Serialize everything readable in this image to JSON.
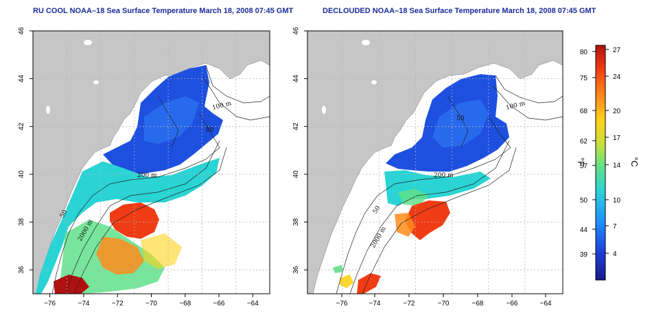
{
  "titles": {
    "left": "RU COOL NOAA–18 Sea Surface Temperature March 18, 2008 07:45 GMT",
    "right": "DECLOUDED NOAA–18 Sea Surface Temperature March 18, 2008 07:45 GMT"
  },
  "axes": {
    "x_ticks": [
      "−76",
      "−74",
      "−72",
      "−70",
      "−68",
      "−66",
      "−64"
    ],
    "y_ticks": [
      "36",
      "38",
      "40",
      "42",
      "44",
      "46"
    ],
    "lon_range": [
      -77,
      -63
    ],
    "lat_range": [
      35,
      46
    ]
  },
  "isobath_labels_left": [
    "100 m",
    "80",
    "200 m",
    "2000 m",
    "50"
  ],
  "isobath_labels_right": [
    "100 m",
    "200 m",
    "2000 m",
    "50",
    "50"
  ],
  "colorbar": {
    "fahrenheit_ticks": [
      "80",
      "75",
      "68",
      "62",
      "57",
      "50",
      "44",
      "39"
    ],
    "celsius_ticks": [
      "27",
      "24",
      "20",
      "17",
      "14",
      "10",
      "7",
      "4"
    ],
    "fahrenheit_unit": "°F",
    "celsius_unit": "°C",
    "colors": [
      "#1a1a8c",
      "#1e40d8",
      "#1e90ff",
      "#2ad4d4",
      "#5fe08a",
      "#c8e03a",
      "#ffd21a",
      "#ff8c1a",
      "#f03c14",
      "#b01010"
    ]
  },
  "colors": {
    "land": "#c6c6c6",
    "frame": "#000000",
    "title": "#1a2a9a",
    "grid": "#b4b4b4"
  }
}
